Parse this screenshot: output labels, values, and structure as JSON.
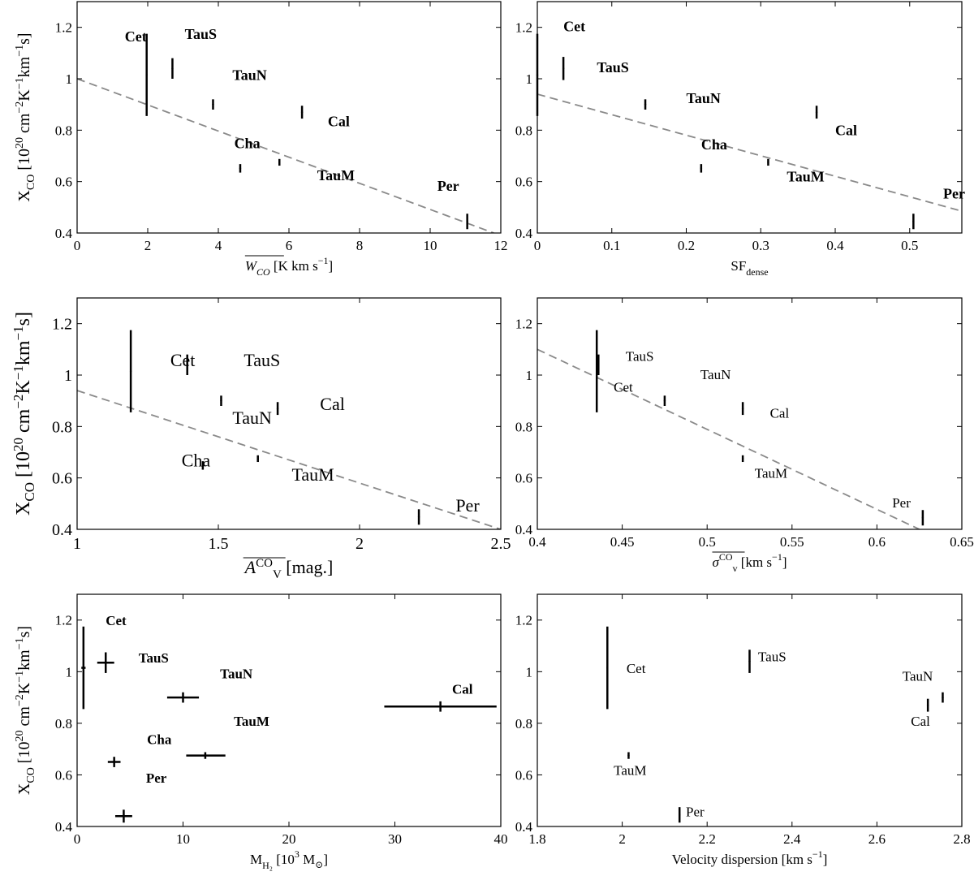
{
  "chart_data": [
    {
      "type": "scatter",
      "panel": "top-left",
      "ylabel_main": "X",
      "ylabel_sub": "CO",
      "ylabel_rest": " [10",
      "ylabel_sup1": "20",
      "ylabel_mid": " cm",
      "ylabel_sup2": "−2",
      "ylabel_mid2": "K",
      "ylabel_sup3": "−1",
      "ylabel_mid3": "km",
      "ylabel_sup4": "−1",
      "ylabel_end": "s]",
      "xlabel": "W_CO [K km s⁻¹]",
      "xlabel_parts": {
        "main": "W",
        "sub": "CO",
        "rest": " [K km s",
        "sup": "−1",
        "end": "]"
      },
      "xlim": [
        0,
        12
      ],
      "ylim": [
        0.4,
        1.3
      ],
      "xticks": [
        0,
        2,
        4,
        6,
        8,
        10,
        12
      ],
      "yticks": [
        0.4,
        0.6,
        0.8,
        1,
        1.2
      ],
      "points": [
        {
          "name": "Cet",
          "x": 1.97,
          "y": 1.015,
          "ylo": 0.855,
          "yhi": 1.175
        },
        {
          "name": "TauS",
          "x": 2.7,
          "y": 1.04,
          "ylo": 1.0,
          "yhi": 1.08
        },
        {
          "name": "TauN",
          "x": 3.85,
          "y": 0.9,
          "ylo": 0.88,
          "yhi": 0.92
        },
        {
          "name": "Cal",
          "x": 6.37,
          "y": 0.87,
          "ylo": 0.845,
          "yhi": 0.895
        },
        {
          "name": "Cha",
          "x": 4.62,
          "y": 0.652,
          "ylo": 0.635,
          "yhi": 0.668
        },
        {
          "name": "TauM",
          "x": 5.73,
          "y": 0.675,
          "ylo": 0.662,
          "yhi": 0.688
        },
        {
          "name": "Per",
          "x": 11.05,
          "y": 0.445,
          "ylo": 0.415,
          "yhi": 0.475
        }
      ],
      "fit_line": {
        "x": [
          0,
          11.8
        ],
        "y": [
          1.0,
          0.4
        ]
      },
      "labels": [
        {
          "text": "Cet",
          "x": 1.35,
          "y": 1.145
        },
        {
          "text": "TauS",
          "x": 3.05,
          "y": 1.155
        },
        {
          "text": "TauN",
          "x": 4.4,
          "y": 0.995
        },
        {
          "text": "Cal",
          "x": 7.1,
          "y": 0.815
        },
        {
          "text": "Cha",
          "x": 4.45,
          "y": 0.73
        },
        {
          "text": "TauM",
          "x": 6.8,
          "y": 0.605
        },
        {
          "text": "Per",
          "x": 10.2,
          "y": 0.565
        }
      ]
    },
    {
      "type": "scatter",
      "panel": "top-right",
      "xlabel_parts": {
        "main": "SF",
        "sub": "dense"
      },
      "xlim": [
        0,
        0.57
      ],
      "ylim": [
        0.4,
        1.3
      ],
      "xticks": [
        0,
        0.1,
        0.2,
        0.3,
        0.4,
        0.5
      ],
      "yticks": [
        0.4,
        0.6,
        0.8,
        1,
        1.2
      ],
      "points": [
        {
          "name": "Cet",
          "x": 0.0,
          "y": 1.015,
          "ylo": 0.855,
          "yhi": 1.175
        },
        {
          "name": "TauS",
          "x": 0.035,
          "y": 1.04,
          "ylo": 0.995,
          "yhi": 1.085
        },
        {
          "name": "TauN",
          "x": 0.145,
          "y": 0.9,
          "ylo": 0.88,
          "yhi": 0.92
        },
        {
          "name": "Cal",
          "x": 0.375,
          "y": 0.87,
          "ylo": 0.845,
          "yhi": 0.895
        },
        {
          "name": "Cha",
          "x": 0.22,
          "y": 0.652,
          "ylo": 0.635,
          "yhi": 0.668
        },
        {
          "name": "TauM",
          "x": 0.31,
          "y": 0.675,
          "ylo": 0.662,
          "yhi": 0.688
        },
        {
          "name": "Per",
          "x": 0.505,
          "y": 0.445,
          "ylo": 0.415,
          "yhi": 0.475
        }
      ],
      "fit_line": {
        "x": [
          0,
          0.57
        ],
        "y": [
          0.94,
          0.485
        ]
      },
      "labels": [
        {
          "text": "Cet",
          "x": 0.035,
          "y": 1.185
        },
        {
          "text": "TauS",
          "x": 0.08,
          "y": 1.025
        },
        {
          "text": "TauN",
          "x": 0.2,
          "y": 0.905
        },
        {
          "text": "Cal",
          "x": 0.4,
          "y": 0.78
        },
        {
          "text": "Cha",
          "x": 0.22,
          "y": 0.725
        },
        {
          "text": "TauM",
          "x": 0.335,
          "y": 0.6
        },
        {
          "text": "Per",
          "x": 0.545,
          "y": 0.535
        }
      ]
    },
    {
      "type": "scatter",
      "panel": "middle-left",
      "xlabel_parts": {
        "main": "A",
        "sub": "V",
        "sup": "CO",
        "rest": " [mag.]"
      },
      "xlim": [
        1,
        2.5
      ],
      "ylim": [
        0.4,
        1.3
      ],
      "xticks": [
        1,
        1.5,
        2,
        2.5
      ],
      "yticks": [
        0.4,
        0.6,
        0.8,
        1,
        1.2
      ],
      "points": [
        {
          "name": "Cet",
          "x": 1.19,
          "y": 1.015,
          "ylo": 0.855,
          "yhi": 1.175
        },
        {
          "name": "TauS",
          "x": 1.39,
          "y": 1.04,
          "ylo": 1.0,
          "yhi": 1.08
        },
        {
          "name": "TauN",
          "x": 1.51,
          "y": 0.9,
          "ylo": 0.88,
          "yhi": 0.92
        },
        {
          "name": "Cal",
          "x": 1.71,
          "y": 0.87,
          "ylo": 0.845,
          "yhi": 0.895
        },
        {
          "name": "Cha",
          "x": 1.445,
          "y": 0.648,
          "ylo": 0.632,
          "yhi": 0.665
        },
        {
          "name": "TauM",
          "x": 1.64,
          "y": 0.675,
          "ylo": 0.662,
          "yhi": 0.688
        },
        {
          "name": "Per",
          "x": 2.21,
          "y": 0.448,
          "ylo": 0.418,
          "yhi": 0.478
        }
      ],
      "fit_line": {
        "x": [
          1,
          2.5
        ],
        "y": [
          0.94,
          0.4
        ]
      },
      "labels": [
        {
          "text": "Cet",
          "x": 1.33,
          "y": 1.035
        },
        {
          "text": "TauS",
          "x": 1.59,
          "y": 1.035
        },
        {
          "text": "TauN",
          "x": 1.55,
          "y": 0.81
        },
        {
          "text": "Cal",
          "x": 1.86,
          "y": 0.865
        },
        {
          "text": "Cha",
          "x": 1.37,
          "y": 0.645
        },
        {
          "text": "TauM",
          "x": 1.76,
          "y": 0.59
        },
        {
          "text": "Per",
          "x": 2.34,
          "y": 0.47
        }
      ]
    },
    {
      "type": "scatter",
      "panel": "middle-right",
      "xlabel_parts": {
        "main": "σ",
        "sub": "v",
        "sup": "CO",
        "rest": " [km s",
        "sup2": "−1",
        "end": "]"
      },
      "xlim": [
        0.4,
        0.65
      ],
      "ylim": [
        0.4,
        1.3
      ],
      "xticks": [
        0.4,
        0.45,
        0.5,
        0.55,
        0.6,
        0.65
      ],
      "yticks": [
        0.4,
        0.6,
        0.8,
        1,
        1.2
      ],
      "points": [
        {
          "name": "Cet",
          "x": 0.435,
          "y": 1.015,
          "ylo": 0.855,
          "yhi": 1.175
        },
        {
          "name": "TauS",
          "x": 0.436,
          "y": 1.04,
          "ylo": 1.0,
          "yhi": 1.08
        },
        {
          "name": "TauN",
          "x": 0.475,
          "y": 0.9,
          "ylo": 0.88,
          "yhi": 0.92
        },
        {
          "name": "Cal",
          "x": 0.521,
          "y": 0.87,
          "ylo": 0.845,
          "yhi": 0.895
        },
        {
          "name": "TauM",
          "x": 0.521,
          "y": 0.675,
          "ylo": 0.662,
          "yhi": 0.688
        },
        {
          "name": "Per",
          "x": 0.627,
          "y": 0.445,
          "ylo": 0.415,
          "yhi": 0.475
        }
      ],
      "fit_line": {
        "x": [
          0.4,
          0.625
        ],
        "y": [
          1.1,
          0.4
        ]
      },
      "labels": [
        {
          "text": "TauS",
          "x": 0.452,
          "y": 1.055
        },
        {
          "text": "Cet",
          "x": 0.445,
          "y": 0.935
        },
        {
          "text": "TauN",
          "x": 0.496,
          "y": 0.985
        },
        {
          "text": "Cal",
          "x": 0.537,
          "y": 0.835
        },
        {
          "text": "TauM",
          "x": 0.528,
          "y": 0.6
        },
        {
          "text": "Per",
          "x": 0.609,
          "y": 0.485
        }
      ]
    },
    {
      "type": "scatter",
      "panel": "bottom-left",
      "xlabel_parts": {
        "main": "M",
        "sub": "H₂",
        "rest": " [10",
        "sup": "3",
        "mid": " M",
        "sub2": "⊙",
        "end": "]"
      },
      "xlim": [
        0,
        40
      ],
      "ylim": [
        0.4,
        1.3
      ],
      "xticks": [
        0,
        10,
        20,
        30,
        40
      ],
      "yticks": [
        0.4,
        0.6,
        0.8,
        1,
        1.2
      ],
      "points": [
        {
          "name": "Cet",
          "x": 0.6,
          "y": 1.015,
          "ylo": 0.855,
          "yhi": 1.175,
          "xlo": 0.4,
          "xhi": 0.8
        },
        {
          "name": "TauS",
          "x": 2.7,
          "y": 1.035,
          "ylo": 0.995,
          "yhi": 1.075,
          "xlo": 1.9,
          "xhi": 3.5
        },
        {
          "name": "TauN",
          "x": 10.0,
          "y": 0.9,
          "ylo": 0.88,
          "yhi": 0.92,
          "xlo": 8.5,
          "xhi": 11.5
        },
        {
          "name": "Cal",
          "x": 34.3,
          "y": 0.865,
          "ylo": 0.845,
          "yhi": 0.885,
          "xlo": 29.0,
          "xhi": 39.6
        },
        {
          "name": "Cha",
          "x": 3.5,
          "y": 0.65,
          "ylo": 0.63,
          "yhi": 0.67,
          "xlo": 2.9,
          "xhi": 4.1
        },
        {
          "name": "TauM",
          "x": 12.1,
          "y": 0.675,
          "ylo": 0.662,
          "yhi": 0.688,
          "xlo": 10.3,
          "xhi": 14.0
        },
        {
          "name": "Per",
          "x": 4.4,
          "y": 0.44,
          "ylo": 0.415,
          "yhi": 0.465,
          "xlo": 3.6,
          "xhi": 5.2
        }
      ],
      "labels": [
        {
          "text": "Cet",
          "x": 2.7,
          "y": 1.18
        },
        {
          "text": "TauS",
          "x": 5.8,
          "y": 1.035
        },
        {
          "text": "TauN",
          "x": 13.5,
          "y": 0.975
        },
        {
          "text": "Cal",
          "x": 35.4,
          "y": 0.915
        },
        {
          "text": "Cha",
          "x": 6.6,
          "y": 0.72
        },
        {
          "text": "TauM",
          "x": 14.8,
          "y": 0.79
        },
        {
          "text": "Per",
          "x": 6.5,
          "y": 0.57
        }
      ]
    },
    {
      "type": "scatter",
      "panel": "bottom-right",
      "xlabel": "Velocity dispersion [km s",
      "xlabel_parts": {
        "main": "Velocity dispersion [km s",
        "sup": "−1",
        "end": "]"
      },
      "xlim": [
        1.8,
        2.8
      ],
      "ylim": [
        0.4,
        1.3
      ],
      "xticks": [
        1.8,
        2.0,
        2.2,
        2.4,
        2.6,
        2.8
      ],
      "yticks": [
        0.4,
        0.6,
        0.8,
        1,
        1.2
      ],
      "points": [
        {
          "name": "Cet",
          "x": 1.965,
          "y": 1.015,
          "ylo": 0.855,
          "yhi": 1.175
        },
        {
          "name": "TauS",
          "x": 2.3,
          "y": 1.04,
          "ylo": 0.995,
          "yhi": 1.085
        },
        {
          "name": "TauN",
          "x": 2.755,
          "y": 0.9,
          "ylo": 0.88,
          "yhi": 0.92
        },
        {
          "name": "Cal",
          "x": 2.72,
          "y": 0.87,
          "ylo": 0.845,
          "yhi": 0.895
        },
        {
          "name": "TauM",
          "x": 2.015,
          "y": 0.675,
          "ylo": 0.662,
          "yhi": 0.688
        },
        {
          "name": "Per",
          "x": 2.135,
          "y": 0.445,
          "ylo": 0.415,
          "yhi": 0.475
        }
      ],
      "labels": [
        {
          "text": "Cet",
          "x": 2.01,
          "y": 0.995
        },
        {
          "text": "TauS",
          "x": 2.32,
          "y": 1.04
        },
        {
          "text": "TauN",
          "x": 2.66,
          "y": 0.965
        },
        {
          "text": "Cal",
          "x": 2.68,
          "y": 0.79
        },
        {
          "text": "TauM",
          "x": 1.98,
          "y": 0.6
        },
        {
          "text": "Per",
          "x": 2.15,
          "y": 0.44
        }
      ]
    }
  ],
  "colors": {
    "axis": "#000000",
    "fit": "#8a8a8a",
    "point": "#000000"
  }
}
